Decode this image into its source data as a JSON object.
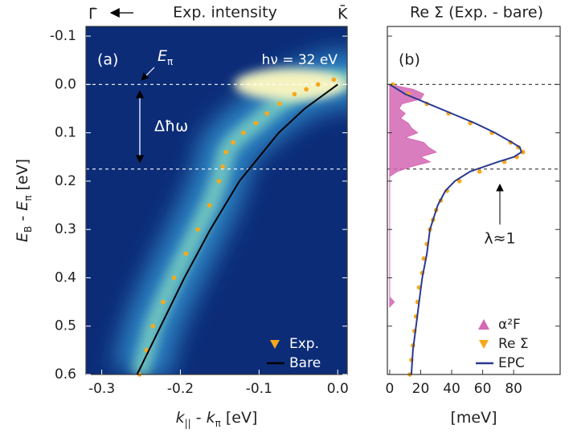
{
  "chart_data": [
    {
      "type": "line",
      "title": "Exp. intensity",
      "direction_label": "Γ̄",
      "panel_label": "(a)",
      "energy_label": [
        {
          "text": "E",
          "italic": true
        },
        {
          "text": "π",
          "sub": true
        }
      ],
      "photon_energy": "hν = 32 eV",
      "gap_label": "Δħω",
      "xlabel": [
        {
          "text": "k",
          "italic": true
        },
        {
          "text": "||",
          "sub": true
        },
        {
          "text": " - "
        },
        {
          "text": "k",
          "italic": true
        },
        {
          "text": "π",
          "sub": true
        },
        {
          "text": " [eV]"
        }
      ],
      "ylabel": [
        {
          "text": "E",
          "italic": true
        },
        {
          "text": "B",
          "sub": true
        },
        {
          "text": " - "
        },
        {
          "text": "E",
          "italic": true
        },
        {
          "text": "π",
          "sub": true
        },
        {
          "text": " [eV]"
        }
      ],
      "xlim": [
        -0.32,
        0.012
      ],
      "xticks": [
        -0.3,
        -0.2,
        -0.1,
        {
          "value": 0,
          "label": "0.0"
        }
      ],
      "ylim": [
        -0.12,
        0.6
      ],
      "invert_y": true,
      "yticks": [
        -0.1,
        {
          "value": 0,
          "label": "0.0"
        },
        0.1,
        0.2,
        0.3,
        0.4,
        0.5,
        0.6
      ],
      "show_ytick_labels": true,
      "hlines": [
        0,
        0.175
      ],
      "hline_color": "#ffffff",
      "heatmap": true,
      "legend": "lower right",
      "series": [
        {
          "name": "Exp.",
          "style": "markers",
          "color": "#f7a81b",
          "x": [
            -0.252,
            -0.243,
            -0.235,
            -0.222,
            -0.208,
            -0.193,
            -0.178,
            -0.163,
            -0.151,
            -0.146,
            -0.142,
            -0.133,
            -0.12,
            -0.104,
            -0.09,
            -0.074,
            -0.055,
            -0.04,
            -0.025,
            -0.005
          ],
          "values": [
            0.6,
            0.55,
            0.5,
            0.45,
            0.4,
            0.35,
            0.3,
            0.25,
            0.2,
            0.17,
            0.14,
            0.12,
            0.1,
            0.08,
            0.06,
            0.04,
            0.02,
            0.01,
            0,
            -0.01
          ]
        },
        {
          "name": "Bare",
          "style": "line",
          "color": "#000000",
          "x": [
            -0.255,
            -0.225,
            -0.195,
            -0.162,
            -0.125,
            -0.075,
            -0.042,
            0
          ],
          "values": [
            0.6,
            0.5,
            0.4,
            0.3,
            0.2,
            0.1,
            0.05,
            0
          ]
        }
      ]
    },
    {
      "type": "line",
      "title": "Re Σ (Exp. - bare)",
      "direction_label": "K̄",
      "panel_label": "(b)",
      "coupling_label": "λ≈1",
      "xlabel": [
        {
          "text": "[meV]"
        }
      ],
      "xlim": [
        -1.5,
        110
      ],
      "xticks": [
        0,
        20,
        40,
        60,
        80
      ],
      "ylim": [
        -0.12,
        0.6
      ],
      "invert_y": true,
      "yticks": [
        -0.1,
        {
          "value": 0,
          "label": "0.0"
        },
        0.1,
        0.2,
        0.3,
        0.4,
        0.5,
        0.6
      ],
      "show_ytick_labels": false,
      "hlines": [
        0,
        0.175
      ],
      "hline_color": "#333333",
      "heatmap": false,
      "legend": "lower right",
      "series": [
        {
          "name": "α²F",
          "style": "area",
          "color": "#d466b4",
          "x": [
            0,
            15,
            22,
            20,
            8,
            6,
            10,
            7,
            12,
            14,
            18,
            10,
            22,
            25,
            30,
            20,
            26,
            14,
            5,
            0,
            0,
            3,
            0
          ],
          "values": [
            0,
            0.01,
            0.02,
            0.03,
            0.04,
            0.05,
            0.06,
            0.07,
            0.08,
            0.09,
            0.1,
            0.11,
            0.12,
            0.13,
            0.14,
            0.15,
            0.16,
            0.17,
            0.18,
            0.19,
            0.44,
            0.45,
            0.46
          ]
        },
        {
          "name": "Re Σ",
          "style": "markers",
          "color": "#f7a81b",
          "x": [
            2,
            12,
            24,
            38,
            52,
            66,
            78,
            83,
            86,
            82,
            74,
            58,
            45,
            37,
            33,
            30,
            28,
            26,
            24,
            22,
            21,
            19,
            18,
            17,
            16,
            15,
            14,
            13
          ],
          "values": [
            0,
            0.02,
            0.04,
            0.06,
            0.08,
            0.1,
            0.12,
            0.13,
            0.14,
            0.15,
            0.16,
            0.18,
            0.2,
            0.22,
            0.24,
            0.26,
            0.28,
            0.3,
            0.33,
            0.36,
            0.39,
            0.42,
            0.45,
            0.48,
            0.51,
            0.54,
            0.57,
            0.6
          ]
        },
        {
          "name": "EPC",
          "style": "line",
          "color": "#2b3990",
          "x": [
            0,
            10,
            25,
            40,
            55,
            68,
            79,
            84,
            85,
            80,
            70,
            52,
            42,
            36,
            31,
            26,
            24,
            21,
            19,
            17,
            15,
            14
          ],
          "values": [
            0,
            0.02,
            0.04,
            0.06,
            0.08,
            0.1,
            0.12,
            0.13,
            0.14,
            0.15,
            0.16,
            0.18,
            0.2,
            0.22,
            0.25,
            0.3,
            0.35,
            0.4,
            0.45,
            0.5,
            0.55,
            0.6
          ]
        }
      ]
    }
  ]
}
